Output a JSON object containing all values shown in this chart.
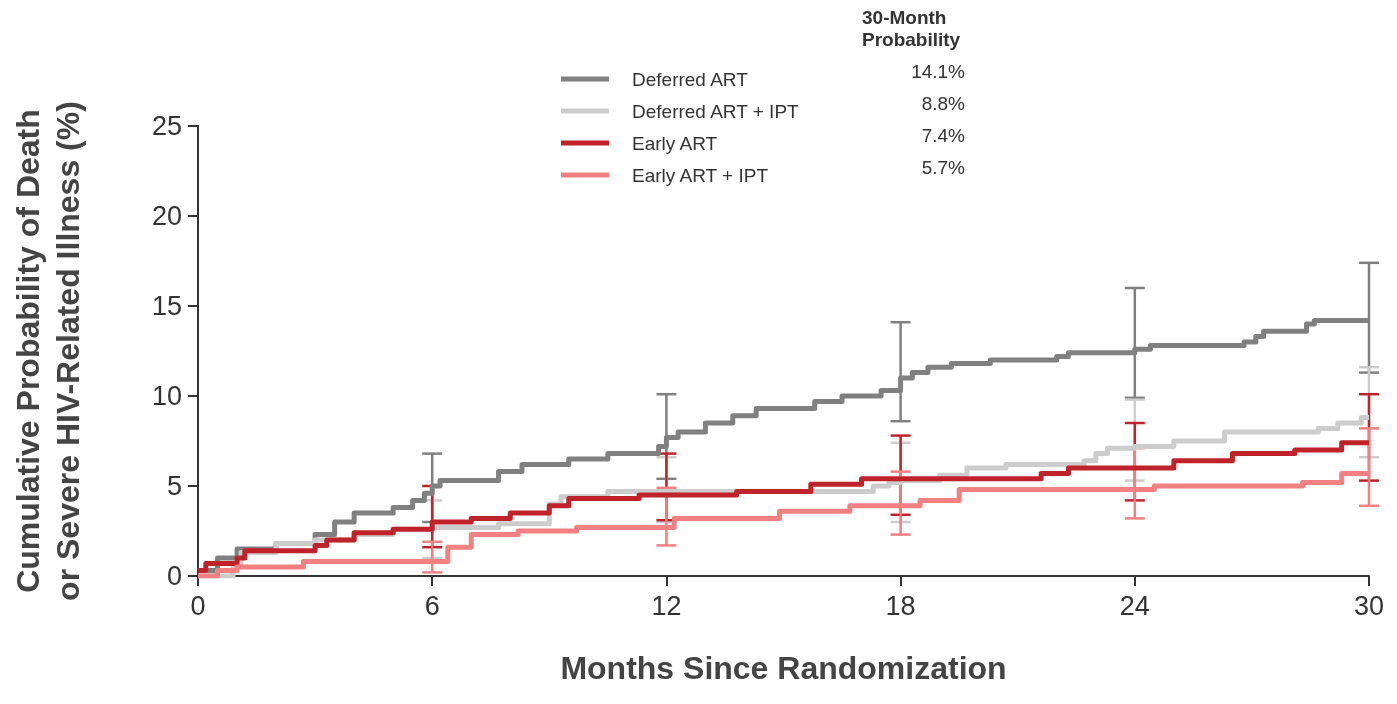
{
  "chart_data": {
    "type": "step",
    "xlabel": "Months Since Randomization",
    "ylabel": "Cumulative Probability of Death\nor Severe HIV-Related Illness (%)",
    "legend_title": "30-Month Probability",
    "annotations": [
      "14.1%",
      "8.8%",
      "7.4%",
      "5.7%"
    ],
    "xlim": [
      0,
      30
    ],
    "xticks": [
      0,
      6,
      12,
      18,
      24,
      30
    ],
    "ylim": [
      0,
      25
    ],
    "yticks": [
      0,
      5,
      10,
      15,
      20,
      25
    ],
    "grid": false,
    "legend": "top",
    "marker": "none",
    "line_style": "solid",
    "series": [
      {
        "name": "Deferred ART",
        "color": "#808080",
        "x": [
          0,
          0.5,
          1,
          2,
          3,
          3.5,
          4,
          5,
          5.5,
          5.8,
          6,
          6.2,
          7.7,
          8.3,
          9.5,
          10.5,
          11.8,
          12,
          12.3,
          13,
          13.7,
          14.3,
          15.8,
          16.5,
          17.5,
          18,
          18.3,
          18.7,
          19.3,
          20.3,
          22,
          22.3,
          24,
          24.4,
          26.8,
          27.1,
          27.3,
          28.4,
          28.6,
          30
        ],
        "values": [
          0.3,
          1.0,
          1.5,
          1.8,
          2.3,
          3.0,
          3.5,
          3.8,
          4.2,
          4.6,
          5.0,
          5.3,
          5.8,
          6.2,
          6.5,
          6.8,
          7.2,
          7.7,
          8.0,
          8.5,
          8.9,
          9.3,
          9.7,
          10.0,
          10.3,
          11.0,
          11.3,
          11.6,
          11.8,
          12.0,
          12.2,
          12.4,
          12.6,
          12.8,
          13.0,
          13.3,
          13.6,
          14.0,
          14.2,
          14.2
        ],
        "errors": [
          null,
          null,
          null,
          null,
          null,
          null,
          null,
          null,
          null,
          null,
          [
            3.0,
            6.8
          ],
          null,
          null,
          null,
          null,
          null,
          null,
          [
            5.4,
            10.1
          ],
          null,
          null,
          null,
          null,
          null,
          null,
          null,
          [
            8.6,
            14.1
          ],
          null,
          null,
          null,
          null,
          null,
          null,
          [
            9.9,
            16.0
          ],
          null,
          null,
          null,
          null,
          null,
          null,
          [
            11.3,
            17.4
          ]
        ]
      },
      {
        "name": "Deferred ART + IPT",
        "color": "#cccccc",
        "x": [
          0,
          0.9,
          1.1,
          2,
          3,
          4,
          5,
          6,
          7.7,
          9,
          9.3,
          10.5,
          12,
          17.3,
          17.7,
          18,
          19,
          19.7,
          20.7,
          22.7,
          23,
          23.3,
          24,
          25,
          26.3,
          28.7,
          29.2,
          29.8,
          30
        ],
        "values": [
          0,
          0.5,
          1.3,
          1.8,
          2.0,
          2.3,
          2.6,
          2.7,
          2.9,
          4.0,
          4.4,
          4.7,
          4.7,
          5.0,
          5.2,
          5.3,
          5.6,
          6.0,
          6.2,
          6.4,
          6.8,
          7.1,
          7.2,
          7.5,
          8.0,
          8.2,
          8.5,
          8.8,
          8.8
        ],
        "errors": [
          null,
          null,
          null,
          null,
          null,
          null,
          null,
          [
            1.0,
            4.2
          ],
          null,
          null,
          null,
          null,
          [
            3.0,
            6.6
          ],
          null,
          null,
          [
            3.0,
            7.4
          ],
          null,
          null,
          null,
          null,
          null,
          null,
          [
            5.3,
            9.8
          ],
          null,
          null,
          null,
          null,
          null,
          [
            6.6,
            11.6
          ]
        ]
      },
      {
        "name": "Early ART",
        "color": "#c0222a",
        "x": [
          0,
          0.2,
          1,
          1.2,
          3,
          3.3,
          4,
          5,
          6,
          7,
          8,
          9,
          9.5,
          11.3,
          12,
          13.8,
          15.7,
          17,
          18,
          21.6,
          22.3,
          24,
          25,
          26.5,
          28.1,
          29.3,
          30
        ],
        "values": [
          0.3,
          0.7,
          1.0,
          1.4,
          1.7,
          2.0,
          2.4,
          2.6,
          3.0,
          3.2,
          3.5,
          3.9,
          4.3,
          4.5,
          4.5,
          4.7,
          5.1,
          5.4,
          5.4,
          5.7,
          6.0,
          6.0,
          6.4,
          6.8,
          7.0,
          7.4,
          7.4
        ],
        "errors": [
          null,
          null,
          null,
          null,
          null,
          null,
          null,
          null,
          [
            1.6,
            5.0
          ],
          null,
          null,
          null,
          null,
          null,
          [
            3.1,
            6.8
          ],
          null,
          null,
          null,
          [
            3.4,
            7.8
          ],
          null,
          null,
          [
            4.2,
            8.5
          ],
          null,
          null,
          null,
          null,
          [
            5.3,
            10.1
          ]
        ]
      },
      {
        "name": "Early ART + IPT",
        "color": "#f28080",
        "x": [
          0,
          0.5,
          1,
          2.7,
          6,
          6.4,
          7,
          8.2,
          9.7,
          12,
          12.2,
          14.9,
          16.7,
          18,
          18.5,
          19.5,
          24,
          24.5,
          28.3,
          29.3,
          30
        ],
        "values": [
          0,
          0.3,
          0.5,
          0.8,
          0.8,
          1.6,
          2.3,
          2.5,
          2.7,
          2.7,
          3.2,
          3.6,
          3.9,
          3.9,
          4.2,
          4.8,
          4.8,
          5.0,
          5.2,
          5.7,
          5.7
        ],
        "errors": [
          null,
          null,
          null,
          null,
          [
            0.2,
            1.9
          ],
          null,
          null,
          null,
          null,
          [
            1.7,
            4.9
          ],
          null,
          null,
          null,
          [
            2.3,
            5.8
          ],
          null,
          null,
          [
            3.2,
            7.1
          ],
          null,
          null,
          null,
          [
            3.9,
            8.2
          ]
        ]
      }
    ]
  }
}
